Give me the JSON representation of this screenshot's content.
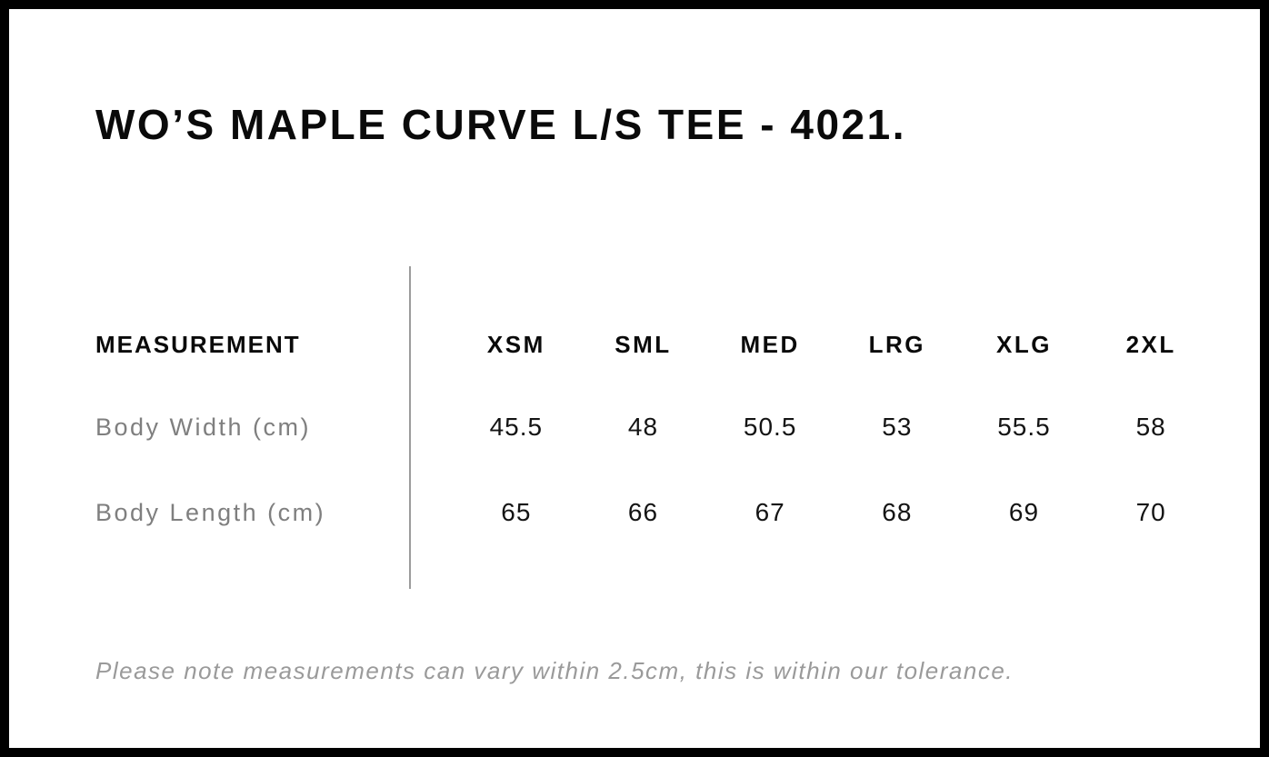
{
  "chart_data": {
    "type": "table",
    "title": "WO’S MAPLE CURVE L/S TEE - 4021.",
    "columns": [
      "MEASUREMENT",
      "XSM",
      "SML",
      "MED",
      "LRG",
      "XLG",
      "2XL"
    ],
    "rows": [
      [
        "Body Width (cm)",
        45.5,
        48,
        50.5,
        53,
        55.5,
        58
      ],
      [
        "Body Length (cm)",
        65,
        66,
        67,
        68,
        69,
        70
      ]
    ],
    "footnote": "Please note measurements can vary within 2.5cm, this is within our tolerance.",
    "layout_hints": "left label column separated from size columns by thin vertical gray rule; values centered under size headers"
  },
  "colors": {
    "text_black": "#0a0a0a",
    "label_gray": "#7f7f7f",
    "note_gray": "#9a9a9a",
    "divider_gray": "#9c9c9c",
    "frame_black": "#000000",
    "background": "#ffffff"
  }
}
